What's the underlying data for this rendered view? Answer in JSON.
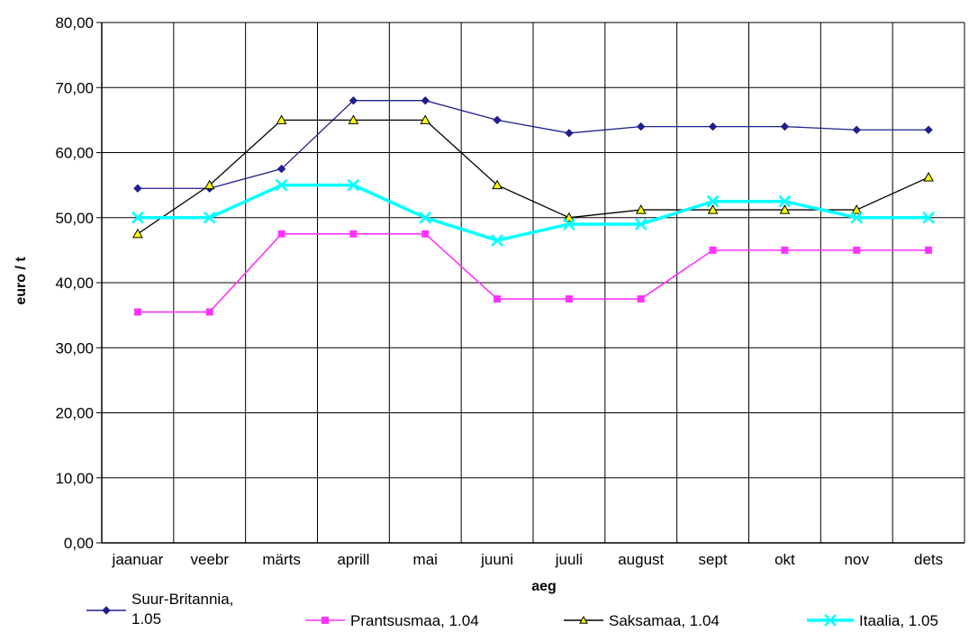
{
  "chart_data": {
    "type": "line",
    "title": "",
    "xlabel": "aeg",
    "ylabel": "euro / t",
    "ylim": [
      0,
      80
    ],
    "y_ticks": [
      "0,00",
      "10,00",
      "20,00",
      "30,00",
      "40,00",
      "50,00",
      "60,00",
      "70,00",
      "80,00"
    ],
    "grid": true,
    "legend_position": "bottom",
    "categories": [
      "jaanuar",
      "veebr",
      "märts",
      "aprill",
      "mai",
      "juuni",
      "juuli",
      "august",
      "sept",
      "okt",
      "nov",
      "dets"
    ],
    "series": [
      {
        "name_lines": [
          "Suur-Britannia,",
          "1.05"
        ],
        "color": "#1f1f8f",
        "marker": "diamond",
        "values": [
          54.5,
          54.5,
          57.5,
          68,
          68,
          65,
          63,
          64,
          64,
          64,
          63.5,
          63.5
        ]
      },
      {
        "name_lines": [
          "Prantsusmaa, 1.04"
        ],
        "color": "#ff33ff",
        "marker": "square",
        "values": [
          35.5,
          35.5,
          47.5,
          47.5,
          47.5,
          37.5,
          37.5,
          37.5,
          45,
          45,
          45,
          45
        ]
      },
      {
        "name_lines": [
          "Saksamaa, 1.04"
        ],
        "color": "#000000",
        "marker": "triangle",
        "marker_fill": "#ffff00",
        "values": [
          47.5,
          55,
          65,
          65,
          65,
          55,
          50,
          51.2,
          51.2,
          51.2,
          51.2,
          56.2
        ]
      },
      {
        "name_lines": [
          "Itaalia, 1.05"
        ],
        "color": "#00ffff",
        "marker": "x",
        "values": [
          50,
          50,
          55,
          55,
          50,
          46.5,
          49,
          49,
          52.5,
          52.5,
          50,
          50
        ]
      }
    ]
  }
}
